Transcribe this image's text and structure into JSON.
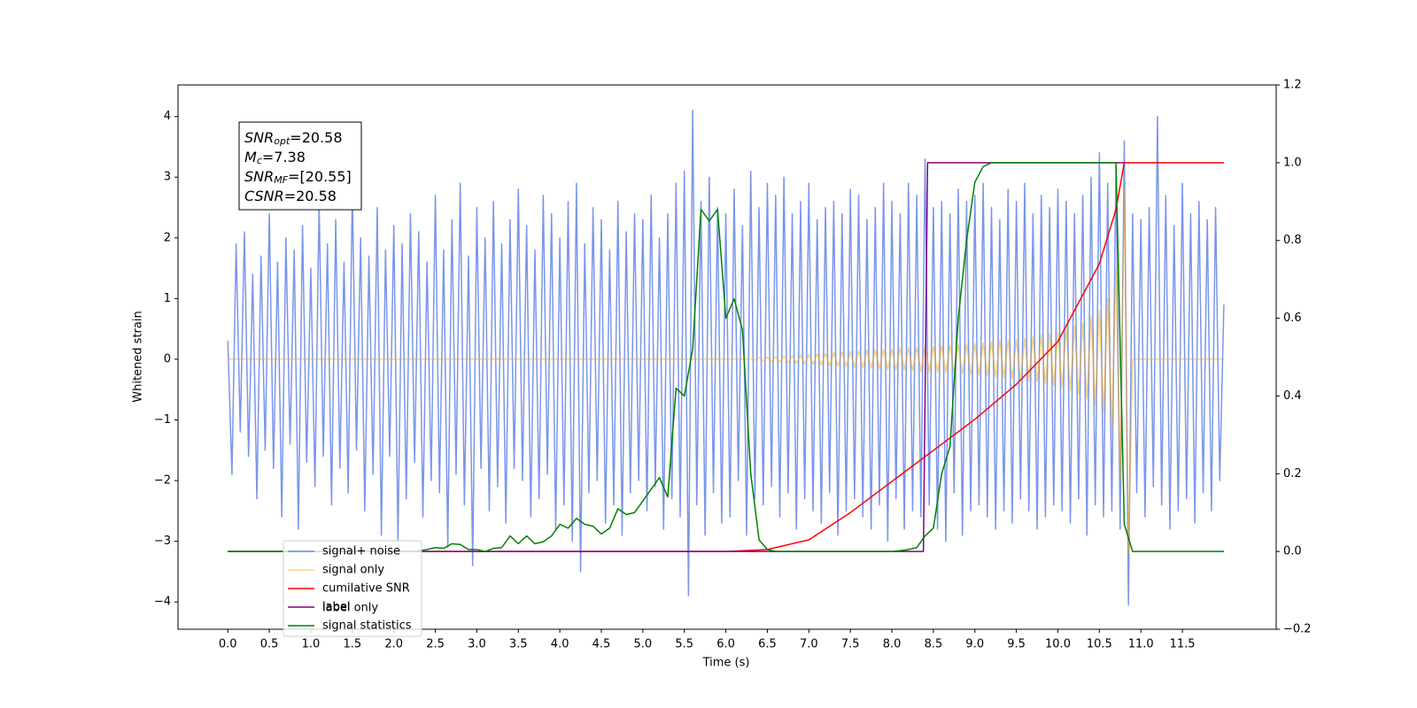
{
  "chart_data": {
    "type": "line",
    "xlabel": "Time (s)",
    "ylabel": "Whitened strain",
    "xlim": [
      -0.6,
      12.63
    ],
    "ylim": [
      -4.45,
      4.52
    ],
    "y2lim": [
      -0.2,
      1.2
    ],
    "xticks": [
      {
        "value": 0,
        "label": "0.0"
      },
      {
        "value": 0.5,
        "label": "0.5"
      },
      {
        "value": 1,
        "label": "1.0"
      },
      {
        "value": 1.5,
        "label": "1.5"
      },
      {
        "value": 2,
        "label": "2.0"
      },
      {
        "value": 2.5,
        "label": "2.5"
      },
      {
        "value": 3,
        "label": "3.0"
      },
      {
        "value": 3.5,
        "label": "3.5"
      },
      {
        "value": 4,
        "label": "4.0"
      },
      {
        "value": 4.5,
        "label": "4.5"
      },
      {
        "value": 5,
        "label": "5.0"
      },
      {
        "value": 5.5,
        "label": "5.5"
      },
      {
        "value": 6,
        "label": "6.0"
      },
      {
        "value": 6.5,
        "label": "6.5"
      },
      {
        "value": 7,
        "label": "7.0"
      },
      {
        "value": 7.5,
        "label": "7.5"
      },
      {
        "value": 8,
        "label": "8.0"
      },
      {
        "value": 8.5,
        "label": "8.5"
      },
      {
        "value": 9,
        "label": "9.0"
      },
      {
        "value": 9.5,
        "label": "9.5"
      },
      {
        "value": 10,
        "label": "10.0"
      },
      {
        "value": 10.5,
        "label": "10.5"
      },
      {
        "value": 11,
        "label": "11.0"
      },
      {
        "value": 11.5,
        "label": "11.5"
      }
    ],
    "yticks": [
      {
        "value": -4,
        "label": "−4"
      },
      {
        "value": -3,
        "label": "−3"
      },
      {
        "value": -2,
        "label": "−2"
      },
      {
        "value": -1,
        "label": "−1"
      },
      0,
      1,
      2,
      3,
      4
    ],
    "y2ticks": [
      {
        "value": -0.2,
        "label": "−0.2"
      },
      {
        "value": 0,
        "label": "0.0"
      },
      {
        "value": 0.2,
        "label": "0.2"
      },
      {
        "value": 0.4,
        "label": "0.4"
      },
      {
        "value": 0.6,
        "label": "0.6"
      },
      {
        "value": 0.8,
        "label": "0.8"
      },
      {
        "value": 1,
        "label": "1.0"
      },
      {
        "value": 1.2,
        "label": "1.2"
      }
    ],
    "x": [
      0,
      0.05,
      0.1,
      0.15,
      0.2,
      0.25,
      0.3,
      0.35,
      0.4,
      0.45,
      0.5,
      0.55,
      0.6,
      0.65,
      0.7,
      0.75,
      0.8,
      0.85,
      0.9,
      0.95,
      1,
      1.05,
      1.1,
      1.15,
      1.2,
      1.25,
      1.3,
      1.35,
      1.4,
      1.45,
      1.5,
      1.55,
      1.6,
      1.65,
      1.7,
      1.75,
      1.8,
      1.85,
      1.9,
      1.95,
      2,
      2.05,
      2.1,
      2.15,
      2.2,
      2.25,
      2.3,
      2.35,
      2.4,
      2.45,
      2.5,
      2.55,
      2.6,
      2.65,
      2.7,
      2.75,
      2.8,
      2.85,
      2.9,
      2.95,
      3,
      3.05,
      3.1,
      3.15,
      3.2,
      3.25,
      3.3,
      3.35,
      3.4,
      3.45,
      3.5,
      3.55,
      3.6,
      3.65,
      3.7,
      3.75,
      3.8,
      3.85,
      3.9,
      3.95,
      4,
      4.05,
      4.1,
      4.15,
      4.2,
      4.25,
      4.3,
      4.35,
      4.4,
      4.45,
      4.5,
      4.55,
      4.6,
      4.65,
      4.7,
      4.75,
      4.8,
      4.85,
      4.9,
      4.95,
      5,
      5.05,
      5.1,
      5.15,
      5.2,
      5.25,
      5.3,
      5.35,
      5.4,
      5.45,
      5.5,
      5.55,
      5.6,
      5.65,
      5.7,
      5.75,
      5.8,
      5.85,
      5.9,
      5.95,
      6,
      6.05,
      6.1,
      6.15,
      6.2,
      6.25,
      6.3,
      6.35,
      6.4,
      6.45,
      6.5,
      6.55,
      6.6,
      6.65,
      6.7,
      6.75,
      6.8,
      6.85,
      6.9,
      6.95,
      7,
      7.05,
      7.1,
      7.15,
      7.2,
      7.25,
      7.3,
      7.35,
      7.4,
      7.45,
      7.5,
      7.55,
      7.6,
      7.65,
      7.7,
      7.75,
      7.8,
      7.85,
      7.9,
      7.95,
      8,
      8.05,
      8.1,
      8.15,
      8.2,
      8.25,
      8.3,
      8.35,
      8.4,
      8.45,
      8.5,
      8.55,
      8.6,
      8.65,
      8.7,
      8.75,
      8.8,
      8.85,
      8.9,
      8.95,
      9,
      9.05,
      9.1,
      9.15,
      9.2,
      9.25,
      9.3,
      9.35,
      9.4,
      9.45,
      9.5,
      9.55,
      9.6,
      9.65,
      9.7,
      9.75,
      9.8,
      9.85,
      9.9,
      9.95,
      10,
      10.05,
      10.1,
      10.15,
      10.2,
      10.25,
      10.3,
      10.35,
      10.4,
      10.45,
      10.5,
      10.55,
      10.6,
      10.65,
      10.7,
      10.75,
      10.8,
      10.85,
      10.9,
      10.95,
      11,
      11.05,
      11.1,
      11.15,
      11.2,
      11.25,
      11.3,
      11.35,
      11.4,
      11.45,
      11.5,
      11.55,
      11.6,
      11.65,
      11.7,
      11.75,
      11.8,
      11.85,
      11.9,
      11.95,
      12
    ],
    "series": [
      {
        "name": "signal+ noise",
        "color": "#4169e1",
        "alpha": 0.7,
        "axis": "y",
        "values": [
          0.3,
          -1.9,
          1.9,
          -1.2,
          2.1,
          -1.6,
          1.4,
          -2.3,
          1.7,
          -1.5,
          2.4,
          -1.8,
          1.6,
          -2.6,
          2.0,
          -1.4,
          1.8,
          -2.8,
          2.2,
          -1.7,
          1.5,
          -2.1,
          2.6,
          -1.6,
          1.9,
          -2.4,
          2.3,
          -1.8,
          1.6,
          -2.2,
          2.8,
          -1.5,
          2.0,
          -2.5,
          1.7,
          -1.9,
          2.5,
          -2.9,
          1.8,
          -1.6,
          2.2,
          -3.0,
          1.9,
          -2.3,
          2.4,
          -1.7,
          2.1,
          -2.6,
          1.6,
          -2.0,
          2.7,
          -2.2,
          1.8,
          -3.1,
          2.3,
          -1.9,
          2.9,
          -2.4,
          1.7,
          -3.4,
          2.5,
          -1.8,
          2.0,
          -2.5,
          2.6,
          -2.1,
          1.9,
          -2.7,
          2.3,
          -1.8,
          2.8,
          -2.0,
          2.2,
          -2.6,
          1.8,
          -2.3,
          2.7,
          -1.9,
          2.4,
          -2.8,
          2.0,
          -2.4,
          2.6,
          -3.0,
          2.9,
          -3.5,
          1.9,
          -2.2,
          2.5,
          -2.0,
          2.3,
          -2.7,
          1.8,
          -2.4,
          2.6,
          -2.9,
          2.1,
          -2.2,
          2.4,
          -2.0,
          2.3,
          -2.5,
          2.7,
          -2.1,
          2.0,
          -2.8,
          2.4,
          -2.3,
          2.9,
          -2.6,
          3.1,
          -3.9,
          4.1,
          -2.4,
          2.6,
          -2.9,
          3.0,
          -2.2,
          2.5,
          -2.7,
          2.4,
          -2.6,
          2.8,
          -2.0,
          2.2,
          -2.9,
          3.1,
          -2.3,
          2.5,
          -2.4,
          2.9,
          -2.1,
          2.7,
          -2.6,
          3.0,
          -2.2,
          2.4,
          -2.8,
          2.6,
          -2.3,
          2.9,
          -2.5,
          2.3,
          -2.7,
          2.5,
          -2.2,
          2.6,
          -2.9,
          2.4,
          -2.5,
          2.8,
          -2.3,
          2.7,
          -2.6,
          2.3,
          -2.8,
          2.5,
          -2.4,
          2.9,
          -3.0,
          2.6,
          -2.3,
          2.4,
          -2.8,
          2.9,
          -2.5,
          2.7,
          -2.6,
          3.3,
          -2.4,
          2.5,
          -2.8,
          2.6,
          -3.0,
          2.4,
          -2.2,
          2.8,
          -2.9,
          2.6,
          -2.5,
          2.7,
          -2.4,
          2.9,
          -2.6,
          2.5,
          -2.8,
          2.3,
          -2.5,
          2.8,
          -2.7,
          2.6,
          -2.3,
          2.9,
          -2.5,
          2.4,
          -2.8,
          2.7,
          -2.6,
          2.5,
          -2.4,
          2.8,
          -2.5,
          2.6,
          -2.7,
          2.4,
          -2.3,
          2.7,
          -2.9,
          3.0,
          -2.4,
          3.4,
          -2.6,
          2.9,
          -2.5,
          3.2,
          -2.8,
          3.6,
          -4.05,
          2.4,
          -2.2,
          2.3,
          -2.6,
          2.5,
          -2.1,
          4.0,
          -2.4,
          2.7,
          -2.8,
          2.2,
          -2.5,
          2.9,
          -2.3,
          2.4,
          -2.7,
          2.6,
          -2.2,
          2.3,
          -2.5,
          2.5,
          -2.0,
          0.9
        ]
      },
      {
        "name": "signal only",
        "color": "#ffa500",
        "alpha": 0.5,
        "axis": "y",
        "values": [
          0,
          0,
          0,
          0,
          0,
          0,
          0,
          0,
          0,
          0,
          0,
          0,
          0,
          0,
          0,
          0,
          0,
          0,
          0,
          0,
          0,
          0,
          0,
          0,
          0,
          0,
          0,
          0,
          0,
          0,
          0,
          0,
          0,
          0,
          0,
          0,
          0,
          0,
          0,
          0,
          0,
          0,
          0,
          0,
          0,
          0,
          0,
          0,
          0,
          0,
          0,
          0,
          0,
          0,
          0,
          0,
          0,
          0,
          0,
          0,
          0,
          0,
          0,
          0,
          0,
          0,
          0,
          0,
          0,
          0,
          0,
          0,
          0,
          0,
          0,
          0,
          0,
          0,
          0,
          0,
          0,
          0,
          0,
          0,
          0,
          0,
          0,
          0,
          0,
          0,
          0,
          0,
          0,
          0,
          0,
          0,
          0,
          0,
          0,
          0,
          0,
          0,
          0,
          0,
          0,
          0,
          0,
          0,
          0,
          0,
          0,
          0,
          0,
          0,
          0,
          0,
          0,
          0,
          0,
          0,
          0,
          0,
          0,
          0,
          0,
          0,
          0.01,
          -0.015,
          0.02,
          -0.025,
          0.03,
          -0.035,
          0.04,
          -0.045,
          0.05,
          -0.055,
          0.06,
          -0.065,
          0.07,
          -0.075,
          0.08,
          -0.085,
          0.09,
          -0.095,
          0.1,
          -0.105,
          0.11,
          -0.115,
          0.12,
          -0.125,
          0.13,
          -0.135,
          0.14,
          -0.14,
          0.15,
          -0.15,
          0.16,
          -0.16,
          0.165,
          -0.165,
          0.17,
          -0.175,
          0.18,
          -0.18,
          0.19,
          -0.19,
          0.2,
          -0.2,
          0.205,
          -0.205,
          0.21,
          -0.215,
          0.22,
          -0.22,
          0.23,
          -0.235,
          0.24,
          -0.245,
          0.25,
          -0.255,
          0.26,
          -0.265,
          0.27,
          -0.28,
          0.29,
          -0.3,
          0.31,
          -0.31,
          0.32,
          -0.325,
          0.33,
          -0.34,
          0.35,
          -0.36,
          0.37,
          -0.38,
          0.4,
          -0.41,
          0.42,
          -0.44,
          0.45,
          -0.47,
          0.5,
          -0.52,
          0.55,
          -0.58,
          0.6,
          -0.65,
          0.7,
          -0.75,
          0.8,
          -0.88,
          1.0,
          -1.15,
          1.5,
          -2.0,
          2.8,
          -3.2,
          0,
          0,
          0,
          0,
          0,
          0,
          0,
          0,
          0,
          0,
          0,
          0,
          0,
          0,
          0,
          0,
          0,
          0,
          0,
          0,
          0,
          0,
          0
        ]
      },
      {
        "name": "cumilative SNR",
        "color": "#ff0000",
        "alpha": 1,
        "axis": "y2",
        "x": [
          0,
          6,
          6.5,
          7,
          7.5,
          8,
          8.5,
          9,
          9.5,
          10,
          10.5,
          10.7,
          10.8,
          12
        ],
        "values": [
          0,
          0,
          0.005,
          0.03,
          0.1,
          0.18,
          0.26,
          0.34,
          0.43,
          0.54,
          0.74,
          0.88,
          1,
          1
        ]
      },
      {
        "name": "label",
        "color": "#800080",
        "alpha": 1,
        "axis": "y2",
        "x": [
          0,
          8.38,
          8.43,
          10.8
        ],
        "values": [
          0,
          0,
          1,
          1
        ]
      },
      {
        "name": "signal statistics",
        "color": "#008000",
        "alpha": 1,
        "axis": "y2",
        "x": [
          0,
          0.1,
          0.2,
          0.3,
          0.4,
          0.5,
          0.6,
          0.7,
          0.8,
          0.9,
          1,
          1.1,
          1.2,
          1.3,
          1.4,
          1.5,
          1.6,
          1.7,
          1.8,
          1.9,
          2,
          2.1,
          2.2,
          2.3,
          2.4,
          2.5,
          2.6,
          2.7,
          2.8,
          2.9,
          3,
          3.1,
          3.2,
          3.3,
          3.4,
          3.5,
          3.6,
          3.7,
          3.8,
          3.9,
          4,
          4.1,
          4.2,
          4.3,
          4.4,
          4.5,
          4.6,
          4.7,
          4.8,
          4.9,
          5,
          5.1,
          5.2,
          5.3,
          5.4,
          5.5,
          5.6,
          5.7,
          5.8,
          5.9,
          6,
          6.1,
          6.2,
          6.3,
          6.4,
          6.5,
          6.6,
          6.7,
          6.8,
          6.9,
          7,
          7.1,
          7.2,
          7.3,
          7.4,
          7.5,
          7.6,
          7.7,
          7.8,
          7.9,
          8,
          8.1,
          8.2,
          8.3,
          8.4,
          8.5,
          8.6,
          8.7,
          8.8,
          8.9,
          9,
          9.1,
          9.2,
          9.3,
          9.4,
          9.5,
          9.6,
          9.7,
          9.8,
          9.9,
          10,
          10.1,
          10.2,
          10.3,
          10.4,
          10.5,
          10.6,
          10.7,
          10.8,
          10.9,
          11,
          11.1,
          11.2,
          11.3,
          11.4,
          11.5,
          11.6,
          11.7,
          11.8,
          11.9,
          12
        ],
        "values": [
          0,
          0,
          0,
          0,
          0,
          0,
          0,
          0,
          0,
          0,
          0,
          0,
          0,
          0,
          0,
          0,
          0,
          0,
          0,
          0,
          0,
          0,
          0,
          0.002,
          0.005,
          0.01,
          0.008,
          0.02,
          0.018,
          0.005,
          0.005,
          0,
          0.008,
          0.01,
          0.04,
          0.02,
          0.04,
          0.02,
          0.025,
          0.04,
          0.07,
          0.06,
          0.085,
          0.07,
          0.065,
          0.045,
          0.06,
          0.11,
          0.095,
          0.1,
          0.13,
          0.16,
          0.19,
          0.14,
          0.42,
          0.4,
          0.52,
          0.88,
          0.85,
          0.88,
          0.6,
          0.65,
          0.57,
          0.2,
          0.03,
          0.005,
          0,
          0,
          0,
          0,
          0,
          0,
          0,
          0,
          0,
          0,
          0,
          0,
          0,
          0,
          0,
          0.002,
          0.005,
          0.01,
          0.04,
          0.06,
          0.2,
          0.27,
          0.6,
          0.8,
          0.95,
          0.99,
          1,
          1,
          1,
          1,
          1,
          1,
          1,
          1,
          1,
          1,
          1,
          1,
          1,
          1,
          1,
          1,
          0.07,
          0,
          0,
          0,
          0,
          0,
          0,
          0,
          0,
          0,
          0,
          0,
          0
        ]
      }
    ],
    "annotation": [
      {
        "symbol": "SNR",
        "subscript": "opt",
        "text": "=20.58"
      },
      {
        "symbol": "M",
        "subscript": "c",
        "text": "=7.38"
      },
      {
        "symbol": "SNR",
        "subscript": "MF",
        "text": "=[20.55]"
      },
      {
        "symbol": "CSNR",
        "subscript": "",
        "text": "=20.58"
      }
    ],
    "legend": {
      "corner": "lower left"
    },
    "legend_overlap_text": "label only"
  }
}
